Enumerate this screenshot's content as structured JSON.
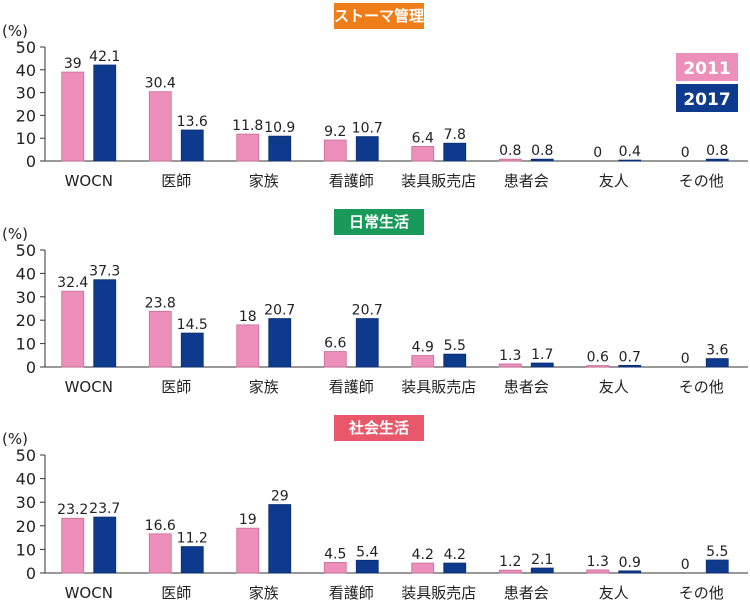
{
  "legend": {
    "series_a": {
      "label": "2011",
      "color": "#ec8fba"
    },
    "series_b": {
      "label": "2017",
      "color": "#0d3a8c"
    }
  },
  "chart_data": [
    {
      "type": "bar",
      "title": "ストーマ管理",
      "title_color": "#ee7d1a",
      "ylabel": "(%)",
      "ylim": [
        0,
        50
      ],
      "yticks": [
        0,
        10,
        20,
        30,
        40,
        50
      ],
      "categories": [
        "WOCN",
        "医師",
        "家族",
        "看護師",
        "装具販売店",
        "患者会",
        "友人",
        "その他"
      ],
      "series": [
        {
          "name": "2011",
          "values": [
            39,
            30.4,
            11.8,
            9.2,
            6.4,
            0.8,
            0,
            0
          ]
        },
        {
          "name": "2017",
          "values": [
            42.1,
            13.6,
            10.9,
            10.7,
            7.8,
            0.8,
            0.4,
            0.8
          ]
        }
      ],
      "legend_position": "top-right",
      "grid": false
    },
    {
      "type": "bar",
      "title": "日常生活",
      "title_color": "#1a9a5a",
      "ylabel": "(%)",
      "ylim": [
        0,
        50
      ],
      "yticks": [
        0,
        10,
        20,
        30,
        40,
        50
      ],
      "categories": [
        "WOCN",
        "医師",
        "家族",
        "看護師",
        "装具販売店",
        "患者会",
        "友人",
        "その他"
      ],
      "series": [
        {
          "name": "2011",
          "values": [
            32.4,
            23.8,
            18,
            6.6,
            4.9,
            1.3,
            0.6,
            0
          ]
        },
        {
          "name": "2017",
          "values": [
            37.3,
            14.5,
            20.7,
            20.7,
            5.5,
            1.7,
            0.7,
            3.6
          ]
        }
      ],
      "grid": false
    },
    {
      "type": "bar",
      "title": "社会生活",
      "title_color": "#e8586a",
      "ylabel": "(%)",
      "ylim": [
        0,
        50
      ],
      "yticks": [
        0,
        10,
        20,
        30,
        40,
        50
      ],
      "categories": [
        "WOCN",
        "医師",
        "家族",
        "看護師",
        "装具販売店",
        "患者会",
        "友人",
        "その他"
      ],
      "series": [
        {
          "name": "2011",
          "values": [
            23.2,
            16.6,
            19,
            4.5,
            4.2,
            1.2,
            1.3,
            0
          ]
        },
        {
          "name": "2017",
          "values": [
            23.7,
            11.2,
            29,
            5.4,
            4.2,
            2.1,
            0.9,
            5.5
          ]
        }
      ],
      "grid": false
    }
  ]
}
